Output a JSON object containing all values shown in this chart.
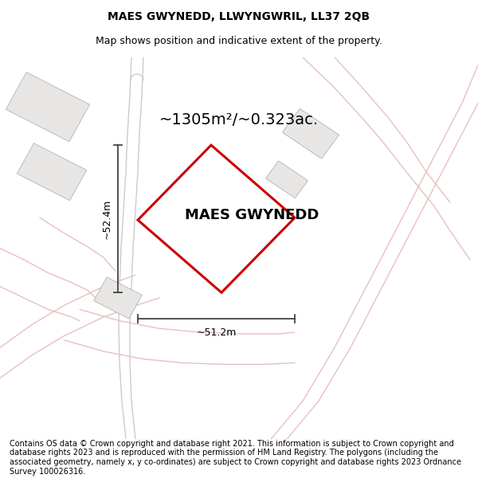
{
  "title": "MAES GWYNEDD, LLWYNGWRIL, LL37 2QB",
  "subtitle": "Map shows position and indicative extent of the property.",
  "area_label": "~1305m²/~0.323ac.",
  "property_label": "MAES GWYNEDD",
  "dim_horizontal": "~51.2m",
  "dim_vertical": "~52.4m",
  "footer": "Contains OS data © Crown copyright and database right 2021. This information is subject to Crown copyright and database rights 2023 and is reproduced with the permission of HM Land Registry. The polygons (including the associated geometry, namely x, y co-ordinates) are subject to Crown copyright and database rights 2023 Ordnance Survey 100026316.",
  "map_bg": "#ffffff",
  "plot_color": "#cc0000",
  "road_pink_color": "#e8c0c0",
  "road_gray_color": "#cccccc",
  "building_face": "#e8e6e4",
  "building_edge": "#bbbbbb",
  "dim_line_color": "#444444",
  "title_fontsize": 10,
  "subtitle_fontsize": 9,
  "area_fontsize": 14,
  "property_fontsize": 13,
  "dim_fontsize": 9,
  "footer_fontsize": 7
}
